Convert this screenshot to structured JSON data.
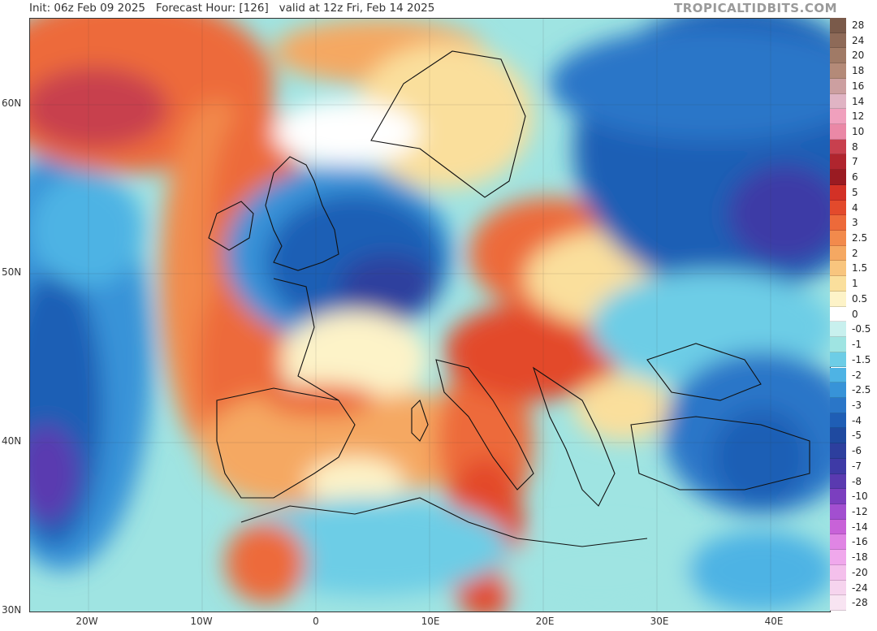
{
  "header": {
    "text": "Init: 06z Feb 09 2025   Forecast Hour: [126]   valid at 12z Fri, Feb 14 2025",
    "brand": "TROPICALTIDBITS.COM"
  },
  "map": {
    "lat_labels": [
      "60N",
      "50N",
      "40N",
      "30N"
    ],
    "lon_labels": [
      "20W",
      "10W",
      "0",
      "10E",
      "20E",
      "30E",
      "40E"
    ]
  },
  "colorbar": {
    "levels": [
      {
        "label": "28",
        "color": "#7a5a4a"
      },
      {
        "label": "24",
        "color": "#8e6a58"
      },
      {
        "label": "20",
        "color": "#a07a66"
      },
      {
        "label": "18",
        "color": "#b48a78"
      },
      {
        "label": "16",
        "color": "#cc9fa0"
      },
      {
        "label": "14",
        "color": "#e0b4c4"
      },
      {
        "label": "12",
        "color": "#f0a0bd"
      },
      {
        "label": "10",
        "color": "#ea88a6"
      },
      {
        "label": "8",
        "color": "#c8404e"
      },
      {
        "label": "7",
        "color": "#b0252e"
      },
      {
        "label": "6",
        "color": "#9a1b22"
      },
      {
        "label": "5",
        "color": "#d33126"
      },
      {
        "label": "4",
        "color": "#e34a2c"
      },
      {
        "label": "3",
        "color": "#ed6a3a"
      },
      {
        "label": "2.5",
        "color": "#f28a4c"
      },
      {
        "label": "2",
        "color": "#f5a862"
      },
      {
        "label": "1.5",
        "color": "#f8c57e"
      },
      {
        "label": "1",
        "color": "#fadf9c"
      },
      {
        "label": "0.5",
        "color": "#fdf3c8"
      },
      {
        "label": "0",
        "color": "#ffffff"
      },
      {
        "label": "-0.5",
        "color": "#c8f0ee"
      },
      {
        "label": "-1",
        "color": "#9fe4e2"
      },
      {
        "label": "-1.5",
        "color": "#6dcde6"
      },
      {
        "label": "-2",
        "color": "#4eb3e4"
      },
      {
        "label": "-2.5",
        "color": "#3793d8"
      },
      {
        "label": "-3",
        "color": "#2a76c8"
      },
      {
        "label": "-4",
        "color": "#1f5eb5"
      },
      {
        "label": "-5",
        "color": "#1f4aa0"
      },
      {
        "label": "-6",
        "color": "#2d3f9e"
      },
      {
        "label": "-7",
        "color": "#3e3aa6"
      },
      {
        "label": "-8",
        "color": "#5a3ab0"
      },
      {
        "label": "-10",
        "color": "#7b3fbf"
      },
      {
        "label": "-12",
        "color": "#a24fd0"
      },
      {
        "label": "-14",
        "color": "#c862d8"
      },
      {
        "label": "-16",
        "color": "#e085e4"
      },
      {
        "label": "-18",
        "color": "#f0a8ec"
      },
      {
        "label": "-20",
        "color": "#f4c0ec"
      },
      {
        "label": "-24",
        "color": "#f6d4ee"
      },
      {
        "label": "-28",
        "color": "#f8e4f2"
      }
    ]
  }
}
